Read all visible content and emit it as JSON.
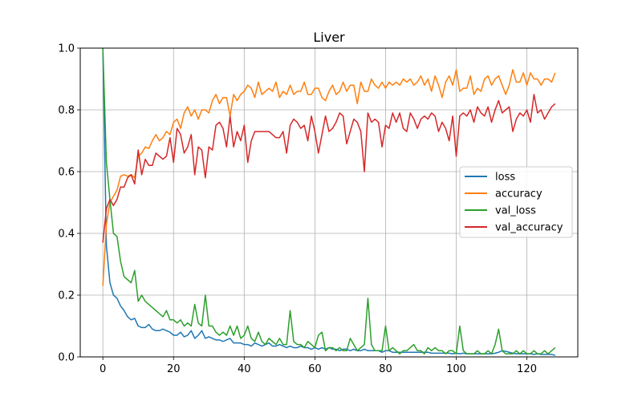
{
  "chart_data": {
    "type": "line",
    "title": "Liver",
    "xlabel": "",
    "ylabel": "",
    "xlim": [
      -6.4,
      134.4
    ],
    "ylim": [
      0.0,
      1.0
    ],
    "xticks": [
      0,
      20,
      40,
      60,
      80,
      100,
      120
    ],
    "yticks": [
      0.0,
      0.2,
      0.4,
      0.6,
      0.8,
      1.0
    ],
    "xtick_labels": [
      "0",
      "20",
      "40",
      "60",
      "80",
      "100",
      "120"
    ],
    "ytick_labels": [
      "0.0",
      "0.2",
      "0.4",
      "0.6",
      "0.8",
      "1.0"
    ],
    "grid": true,
    "legend_position": "center-right",
    "x": [
      0,
      1,
      2,
      3,
      4,
      5,
      6,
      7,
      8,
      9,
      10,
      11,
      12,
      13,
      14,
      15,
      16,
      17,
      18,
      19,
      20,
      21,
      22,
      23,
      24,
      25,
      26,
      27,
      28,
      29,
      30,
      31,
      32,
      33,
      34,
      35,
      36,
      37,
      38,
      39,
      40,
      41,
      42,
      43,
      44,
      45,
      46,
      47,
      48,
      49,
      50,
      51,
      52,
      53,
      54,
      55,
      56,
      57,
      58,
      59,
      60,
      61,
      62,
      63,
      64,
      65,
      66,
      67,
      68,
      69,
      70,
      71,
      72,
      73,
      74,
      75,
      76,
      77,
      78,
      79,
      80,
      81,
      82,
      83,
      84,
      85,
      86,
      87,
      88,
      89,
      90,
      91,
      92,
      93,
      94,
      95,
      96,
      97,
      98,
      99,
      100,
      101,
      102,
      103,
      104,
      105,
      106,
      107,
      108,
      109,
      110,
      111,
      112,
      113,
      114,
      115,
      116,
      117,
      118,
      119,
      120,
      121,
      122,
      123,
      124,
      125,
      126,
      127,
      128
    ],
    "series": [
      {
        "name": "loss",
        "color": "#1f77b4",
        "values": [
          1.0,
          0.36,
          0.24,
          0.2,
          0.19,
          0.165,
          0.15,
          0.13,
          0.12,
          0.125,
          0.1,
          0.095,
          0.095,
          0.105,
          0.09,
          0.085,
          0.085,
          0.09,
          0.085,
          0.08,
          0.07,
          0.07,
          0.08,
          0.065,
          0.07,
          0.085,
          0.06,
          0.07,
          0.085,
          0.06,
          0.065,
          0.06,
          0.055,
          0.055,
          0.05,
          0.055,
          0.06,
          0.045,
          0.045,
          0.045,
          0.04,
          0.04,
          0.035,
          0.045,
          0.04,
          0.035,
          0.04,
          0.045,
          0.035,
          0.035,
          0.04,
          0.035,
          0.03,
          0.035,
          0.03,
          0.03,
          0.035,
          0.03,
          0.03,
          0.025,
          0.03,
          0.025,
          0.03,
          0.025,
          0.03,
          0.025,
          0.025,
          0.02,
          0.025,
          0.025,
          0.02,
          0.025,
          0.02,
          0.02,
          0.025,
          0.02,
          0.02,
          0.02,
          0.02,
          0.015,
          0.02,
          0.02,
          0.015,
          0.015,
          0.015,
          0.015,
          0.015,
          0.015,
          0.015,
          0.015,
          0.015,
          0.015,
          0.015,
          0.012,
          0.012,
          0.012,
          0.012,
          0.012,
          0.012,
          0.01,
          0.012,
          0.01,
          0.012,
          0.01,
          0.01,
          0.01,
          0.01,
          0.01,
          0.01,
          0.01,
          0.01,
          0.012,
          0.015,
          0.02,
          0.018,
          0.015,
          0.012,
          0.01,
          0.01,
          0.01,
          0.01,
          0.01,
          0.008,
          0.01,
          0.008,
          0.008,
          0.008,
          0.008,
          0.005
        ]
      },
      {
        "name": "accuracy",
        "color": "#ff7f0e",
        "values": [
          0.23,
          0.43,
          0.5,
          0.52,
          0.54,
          0.585,
          0.59,
          0.585,
          0.59,
          0.58,
          0.65,
          0.66,
          0.68,
          0.675,
          0.7,
          0.72,
          0.7,
          0.71,
          0.73,
          0.72,
          0.76,
          0.77,
          0.74,
          0.79,
          0.81,
          0.78,
          0.8,
          0.77,
          0.8,
          0.8,
          0.79,
          0.83,
          0.85,
          0.82,
          0.84,
          0.84,
          0.78,
          0.85,
          0.83,
          0.85,
          0.86,
          0.88,
          0.87,
          0.84,
          0.89,
          0.85,
          0.86,
          0.87,
          0.86,
          0.89,
          0.84,
          0.86,
          0.85,
          0.88,
          0.85,
          0.86,
          0.86,
          0.89,
          0.85,
          0.85,
          0.87,
          0.87,
          0.84,
          0.83,
          0.86,
          0.88,
          0.85,
          0.86,
          0.89,
          0.86,
          0.88,
          0.88,
          0.82,
          0.89,
          0.86,
          0.86,
          0.9,
          0.88,
          0.87,
          0.89,
          0.87,
          0.89,
          0.88,
          0.89,
          0.88,
          0.9,
          0.89,
          0.9,
          0.88,
          0.89,
          0.91,
          0.88,
          0.9,
          0.86,
          0.91,
          0.88,
          0.84,
          0.89,
          0.91,
          0.88,
          0.93,
          0.86,
          0.87,
          0.87,
          0.91,
          0.85,
          0.87,
          0.86,
          0.9,
          0.91,
          0.88,
          0.9,
          0.91,
          0.88,
          0.85,
          0.88,
          0.93,
          0.89,
          0.89,
          0.92,
          0.88,
          0.92,
          0.9,
          0.9,
          0.88,
          0.9,
          0.9,
          0.89,
          0.92
        ]
      },
      {
        "name": "val_loss",
        "color": "#2ca02c",
        "values": [
          1.0,
          0.63,
          0.51,
          0.4,
          0.39,
          0.31,
          0.26,
          0.25,
          0.24,
          0.28,
          0.18,
          0.2,
          0.18,
          0.17,
          0.16,
          0.15,
          0.14,
          0.13,
          0.15,
          0.12,
          0.12,
          0.11,
          0.12,
          0.1,
          0.11,
          0.1,
          0.17,
          0.11,
          0.1,
          0.2,
          0.1,
          0.1,
          0.08,
          0.07,
          0.08,
          0.07,
          0.1,
          0.07,
          0.1,
          0.06,
          0.07,
          0.1,
          0.06,
          0.05,
          0.08,
          0.05,
          0.04,
          0.06,
          0.05,
          0.04,
          0.06,
          0.04,
          0.04,
          0.15,
          0.05,
          0.04,
          0.04,
          0.03,
          0.05,
          0.04,
          0.03,
          0.07,
          0.08,
          0.02,
          0.03,
          0.03,
          0.02,
          0.03,
          0.02,
          0.02,
          0.06,
          0.04,
          0.02,
          0.03,
          0.04,
          0.19,
          0.04,
          0.02,
          0.02,
          0.02,
          0.1,
          0.02,
          0.03,
          0.02,
          0.01,
          0.02,
          0.02,
          0.03,
          0.04,
          0.02,
          0.02,
          0.01,
          0.03,
          0.02,
          0.03,
          0.02,
          0.02,
          0.01,
          0.02,
          0.02,
          0.01,
          0.1,
          0.02,
          0.01,
          0.01,
          0.01,
          0.02,
          0.01,
          0.01,
          0.02,
          0.01,
          0.04,
          0.09,
          0.02,
          0.01,
          0.01,
          0.01,
          0.02,
          0.01,
          0.02,
          0.01,
          0.01,
          0.02,
          0.01,
          0.01,
          0.02,
          0.01,
          0.02,
          0.03
        ]
      },
      {
        "name": "val_accuracy",
        "color": "#d62728",
        "values": [
          0.37,
          0.48,
          0.51,
          0.49,
          0.51,
          0.55,
          0.55,
          0.58,
          0.59,
          0.56,
          0.67,
          0.59,
          0.64,
          0.62,
          0.62,
          0.66,
          0.65,
          0.64,
          0.65,
          0.71,
          0.63,
          0.74,
          0.72,
          0.66,
          0.68,
          0.72,
          0.59,
          0.68,
          0.67,
          0.58,
          0.68,
          0.67,
          0.75,
          0.76,
          0.74,
          0.68,
          0.78,
          0.68,
          0.73,
          0.7,
          0.75,
          0.63,
          0.7,
          0.73,
          0.73,
          0.73,
          0.73,
          0.73,
          0.72,
          0.71,
          0.71,
          0.73,
          0.66,
          0.75,
          0.77,
          0.76,
          0.74,
          0.75,
          0.7,
          0.78,
          0.73,
          0.66,
          0.72,
          0.78,
          0.73,
          0.74,
          0.76,
          0.79,
          0.78,
          0.69,
          0.73,
          0.77,
          0.76,
          0.73,
          0.6,
          0.79,
          0.76,
          0.77,
          0.76,
          0.68,
          0.75,
          0.74,
          0.79,
          0.76,
          0.79,
          0.74,
          0.73,
          0.79,
          0.77,
          0.74,
          0.77,
          0.78,
          0.77,
          0.79,
          0.78,
          0.73,
          0.76,
          0.74,
          0.7,
          0.78,
          0.65,
          0.78,
          0.79,
          0.78,
          0.8,
          0.76,
          0.81,
          0.79,
          0.78,
          0.81,
          0.76,
          0.8,
          0.83,
          0.79,
          0.8,
          0.81,
          0.73,
          0.77,
          0.79,
          0.78,
          0.8,
          0.76,
          0.85,
          0.79,
          0.8,
          0.77,
          0.79,
          0.81,
          0.82
        ]
      }
    ]
  }
}
